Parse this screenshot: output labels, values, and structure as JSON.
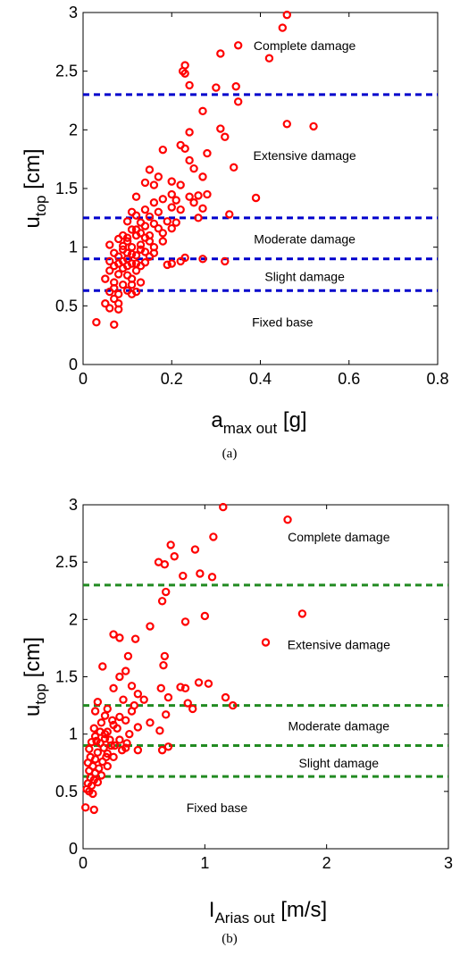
{
  "chart_data": [
    {
      "type": "scatter",
      "panel_label": "(a)",
      "xlabel": {
        "main": "a",
        "sub": "max out",
        "unit": "[g]"
      },
      "ylabel": {
        "main": "u",
        "sub": "top",
        "unit": "[cm]"
      },
      "xlim": [
        0,
        0.8
      ],
      "ylim": [
        0,
        3
      ],
      "xticks": [
        "0",
        "0.2",
        "0.4",
        "0.6",
        "0.8"
      ],
      "yticks": [
        "0",
        "0.5",
        "1",
        "1.5",
        "2",
        "2.5",
        "3"
      ],
      "grid": false,
      "marker_color": "#ff0000",
      "threshold_color": "#0000cc",
      "thresholds": [
        0.63,
        0.9,
        1.25,
        2.3
      ],
      "annotations": [
        {
          "text": "Complete damage",
          "x": 0.5,
          "y": 2.72
        },
        {
          "text": "Extensive damage",
          "x": 0.5,
          "y": 1.78
        },
        {
          "text": "Moderate damage",
          "x": 0.5,
          "y": 1.07
        },
        {
          "text": "Slight damage",
          "x": 0.5,
          "y": 0.75
        },
        {
          "text": "Fixed base",
          "x": 0.45,
          "y": 0.36
        }
      ],
      "points": [
        [
          0.46,
          2.98
        ],
        [
          0.45,
          2.87
        ],
        [
          0.35,
          2.72
        ],
        [
          0.42,
          2.61
        ],
        [
          0.31,
          2.65
        ],
        [
          0.23,
          2.55
        ],
        [
          0.225,
          2.5
        ],
        [
          0.23,
          2.48
        ],
        [
          0.3,
          2.36
        ],
        [
          0.345,
          2.37
        ],
        [
          0.24,
          2.38
        ],
        [
          0.35,
          2.24
        ],
        [
          0.27,
          2.16
        ],
        [
          0.46,
          2.05
        ],
        [
          0.52,
          2.03
        ],
        [
          0.31,
          2.01
        ],
        [
          0.24,
          1.98
        ],
        [
          0.32,
          1.94
        ],
        [
          0.22,
          1.87
        ],
        [
          0.23,
          1.84
        ],
        [
          0.18,
          1.83
        ],
        [
          0.28,
          1.8
        ],
        [
          0.24,
          1.74
        ],
        [
          0.34,
          1.68
        ],
        [
          0.25,
          1.67
        ],
        [
          0.15,
          1.66
        ],
        [
          0.27,
          1.6
        ],
        [
          0.17,
          1.6
        ],
        [
          0.14,
          1.55
        ],
        [
          0.16,
          1.53
        ],
        [
          0.2,
          1.56
        ],
        [
          0.22,
          1.53
        ],
        [
          0.2,
          1.45
        ],
        [
          0.24,
          1.43
        ],
        [
          0.26,
          1.44
        ],
        [
          0.28,
          1.45
        ],
        [
          0.39,
          1.42
        ],
        [
          0.12,
          1.43
        ],
        [
          0.18,
          1.41
        ],
        [
          0.21,
          1.4
        ],
        [
          0.25,
          1.38
        ],
        [
          0.16,
          1.38
        ],
        [
          0.11,
          1.3
        ],
        [
          0.14,
          1.32
        ],
        [
          0.2,
          1.34
        ],
        [
          0.22,
          1.32
        ],
        [
          0.17,
          1.3
        ],
        [
          0.27,
          1.33
        ],
        [
          0.12,
          1.27
        ],
        [
          0.15,
          1.26
        ],
        [
          0.19,
          1.22
        ],
        [
          0.21,
          1.21
        ],
        [
          0.16,
          1.2
        ],
        [
          0.26,
          1.25
        ],
        [
          0.33,
          1.28
        ],
        [
          0.1,
          1.22
        ],
        [
          0.13,
          1.21
        ],
        [
          0.17,
          1.16
        ],
        [
          0.2,
          1.16
        ],
        [
          0.14,
          1.18
        ],
        [
          0.11,
          1.15
        ],
        [
          0.18,
          1.12
        ],
        [
          0.12,
          1.1
        ],
        [
          0.09,
          1.1
        ],
        [
          0.1,
          1.08
        ],
        [
          0.15,
          1.05
        ],
        [
          0.08,
          1.07
        ],
        [
          0.13,
          1.02
        ],
        [
          0.11,
          1.0
        ],
        [
          0.06,
          1.02
        ],
        [
          0.09,
          0.98
        ],
        [
          0.1,
          0.95
        ],
        [
          0.14,
          0.96
        ],
        [
          0.07,
          0.95
        ],
        [
          0.12,
          0.93
        ],
        [
          0.1,
          0.9
        ],
        [
          0.08,
          0.92
        ],
        [
          0.09,
          0.88
        ],
        [
          0.06,
          0.88
        ],
        [
          0.11,
          0.86
        ],
        [
          0.14,
          0.87
        ],
        [
          0.07,
          0.84
        ],
        [
          0.13,
          0.84
        ],
        [
          0.19,
          0.85
        ],
        [
          0.2,
          0.86
        ],
        [
          0.22,
          0.88
        ],
        [
          0.23,
          0.91
        ],
        [
          0.27,
          0.9
        ],
        [
          0.32,
          0.88
        ],
        [
          0.09,
          0.82
        ],
        [
          0.12,
          0.8
        ],
        [
          0.06,
          0.8
        ],
        [
          0.08,
          0.77
        ],
        [
          0.1,
          0.76
        ],
        [
          0.11,
          0.73
        ],
        [
          0.05,
          0.73
        ],
        [
          0.07,
          0.7
        ],
        [
          0.13,
          0.7
        ],
        [
          0.09,
          0.68
        ],
        [
          0.07,
          0.65
        ],
        [
          0.1,
          0.63
        ],
        [
          0.12,
          0.62
        ],
        [
          0.06,
          0.62
        ],
        [
          0.08,
          0.6
        ],
        [
          0.11,
          0.6
        ],
        [
          0.07,
          0.56
        ],
        [
          0.08,
          0.52
        ],
        [
          0.05,
          0.52
        ],
        [
          0.06,
          0.48
        ],
        [
          0.08,
          0.47
        ],
        [
          0.03,
          0.36
        ],
        [
          0.07,
          0.34
        ],
        [
          0.15,
          1.1
        ],
        [
          0.16,
          1.0
        ],
        [
          0.12,
          1.15
        ],
        [
          0.14,
          1.08
        ],
        [
          0.1,
          1.05
        ],
        [
          0.13,
          0.98
        ],
        [
          0.11,
          0.94
        ],
        [
          0.15,
          0.92
        ],
        [
          0.09,
          1.01
        ],
        [
          0.12,
          0.86
        ],
        [
          0.16,
          0.95
        ],
        [
          0.18,
          1.05
        ],
        [
          0.13,
          1.12
        ],
        [
          0.1,
          0.84
        ],
        [
          0.08,
          0.86
        ],
        [
          0.11,
          0.68
        ]
      ],
      "caption": "(a)"
    },
    {
      "type": "scatter",
      "panel_label": "(b)",
      "xlabel": {
        "main": "I",
        "sub": "Arias out",
        "unit": "[m/s]"
      },
      "ylabel": {
        "main": "u",
        "sub": "top",
        "unit": "[cm]"
      },
      "xlim": [
        0,
        3
      ],
      "ylim": [
        0,
        3
      ],
      "xticks": [
        "0",
        "1",
        "2",
        "3"
      ],
      "yticks": [
        "0",
        "0.5",
        "1",
        "1.5",
        "2",
        "2.5",
        "3"
      ],
      "grid": false,
      "marker_color": "#ff0000",
      "threshold_color": "#228b22",
      "thresholds": [
        0.63,
        0.9,
        1.25,
        2.3
      ],
      "annotations": [
        {
          "text": "Complete damage",
          "x": 2.1,
          "y": 2.72
        },
        {
          "text": "Extensive damage",
          "x": 2.1,
          "y": 1.78
        },
        {
          "text": "Moderate damage",
          "x": 2.1,
          "y": 1.07
        },
        {
          "text": "Slight damage",
          "x": 2.1,
          "y": 0.75
        },
        {
          "text": "Fixed base",
          "x": 1.1,
          "y": 0.36
        }
      ],
      "points": [
        [
          1.15,
          2.98
        ],
        [
          1.68,
          2.87
        ],
        [
          1.07,
          2.72
        ],
        [
          0.72,
          2.65
        ],
        [
          0.92,
          2.61
        ],
        [
          0.62,
          2.5
        ],
        [
          0.67,
          2.48
        ],
        [
          0.82,
          2.38
        ],
        [
          0.75,
          2.55
        ],
        [
          0.96,
          2.4
        ],
        [
          1.06,
          2.37
        ],
        [
          0.68,
          2.24
        ],
        [
          0.65,
          2.16
        ],
        [
          1.8,
          2.05
        ],
        [
          0.84,
          1.98
        ],
        [
          1.0,
          2.03
        ],
        [
          0.55,
          1.94
        ],
        [
          0.25,
          1.87
        ],
        [
          0.3,
          1.84
        ],
        [
          0.43,
          1.83
        ],
        [
          1.5,
          1.8
        ],
        [
          0.37,
          1.68
        ],
        [
          0.16,
          1.59
        ],
        [
          0.67,
          1.68
        ],
        [
          0.35,
          1.55
        ],
        [
          0.66,
          1.6
        ],
        [
          0.3,
          1.5
        ],
        [
          0.4,
          1.42
        ],
        [
          0.8,
          1.41
        ],
        [
          0.95,
          1.45
        ],
        [
          1.03,
          1.44
        ],
        [
          0.84,
          1.4
        ],
        [
          0.25,
          1.4
        ],
        [
          0.45,
          1.35
        ],
        [
          0.64,
          1.4
        ],
        [
          0.7,
          1.32
        ],
        [
          1.17,
          1.32
        ],
        [
          1.23,
          1.25
        ],
        [
          0.12,
          1.28
        ],
        [
          0.33,
          1.3
        ],
        [
          0.2,
          1.22
        ],
        [
          0.4,
          1.2
        ],
        [
          0.9,
          1.22
        ],
        [
          0.86,
          1.27
        ],
        [
          0.1,
          1.2
        ],
        [
          0.18,
          1.16
        ],
        [
          0.3,
          1.15
        ],
        [
          0.68,
          1.17
        ],
        [
          0.15,
          1.1
        ],
        [
          0.25,
          1.08
        ],
        [
          0.35,
          1.12
        ],
        [
          0.09,
          1.05
        ],
        [
          0.2,
          1.02
        ],
        [
          0.45,
          1.06
        ],
        [
          0.63,
          1.03
        ],
        [
          0.1,
          0.98
        ],
        [
          0.18,
          0.96
        ],
        [
          0.3,
          0.95
        ],
        [
          0.07,
          0.93
        ],
        [
          0.14,
          0.92
        ],
        [
          0.23,
          0.9
        ],
        [
          0.35,
          0.88
        ],
        [
          0.45,
          0.86
        ],
        [
          0.65,
          0.86
        ],
        [
          0.05,
          0.87
        ],
        [
          0.12,
          0.84
        ],
        [
          0.2,
          0.83
        ],
        [
          0.7,
          0.89
        ],
        [
          0.06,
          0.8
        ],
        [
          0.1,
          0.78
        ],
        [
          0.16,
          0.76
        ],
        [
          0.25,
          0.8
        ],
        [
          0.04,
          0.75
        ],
        [
          0.08,
          0.72
        ],
        [
          0.13,
          0.7
        ],
        [
          0.2,
          0.72
        ],
        [
          0.05,
          0.68
        ],
        [
          0.1,
          0.66
        ],
        [
          0.15,
          0.64
        ],
        [
          0.06,
          0.62
        ],
        [
          0.09,
          0.6
        ],
        [
          0.12,
          0.58
        ],
        [
          0.04,
          0.57
        ],
        [
          0.07,
          0.55
        ],
        [
          0.03,
          0.52
        ],
        [
          0.05,
          0.5
        ],
        [
          0.08,
          0.48
        ],
        [
          0.02,
          0.36
        ],
        [
          0.09,
          0.34
        ],
        [
          0.18,
          1.0
        ],
        [
          0.22,
          0.95
        ],
        [
          0.28,
          1.05
        ],
        [
          0.14,
          1.02
        ],
        [
          0.26,
          0.9
        ],
        [
          0.38,
          1.0
        ],
        [
          0.32,
          0.86
        ],
        [
          0.17,
          0.88
        ],
        [
          0.11,
          0.94
        ],
        [
          0.24,
          1.12
        ],
        [
          0.42,
          1.25
        ],
        [
          0.5,
          1.3
        ],
        [
          0.55,
          1.1
        ],
        [
          0.36,
          0.92
        ],
        [
          0.19,
          0.8
        ]
      ],
      "caption": "(b)"
    }
  ]
}
